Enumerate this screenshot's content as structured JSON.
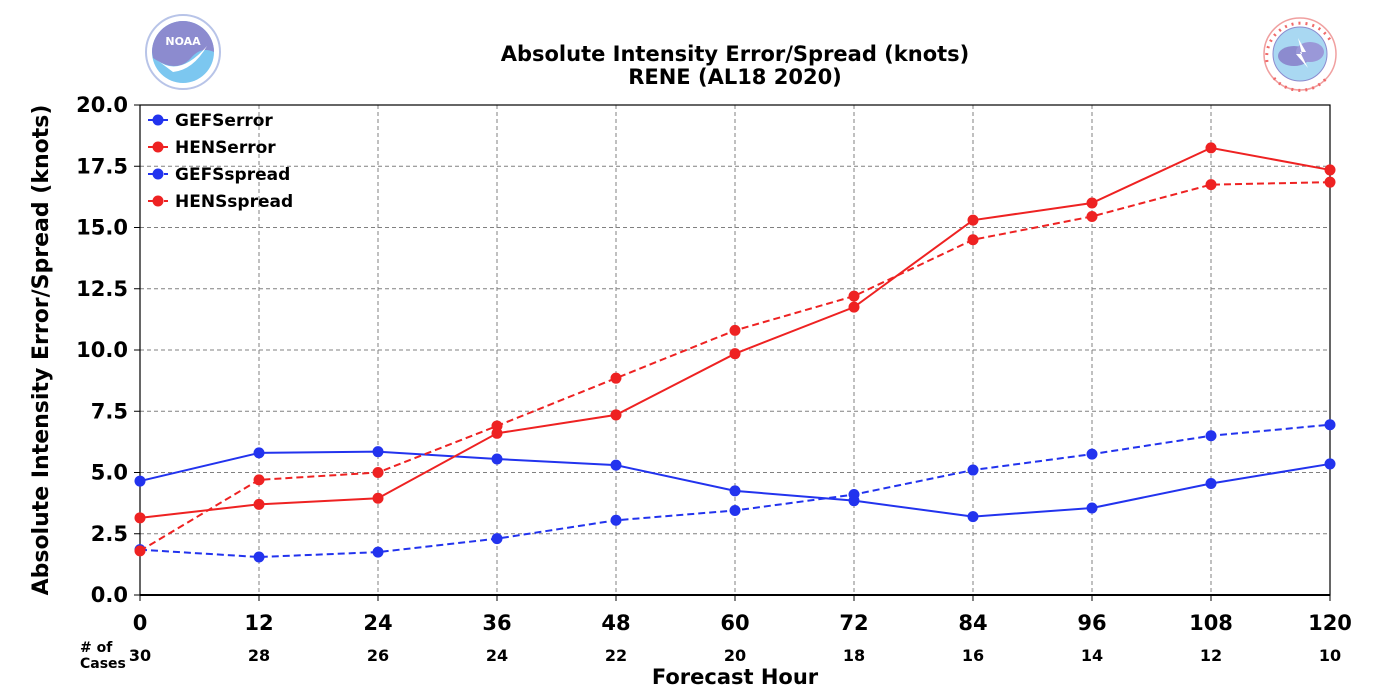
{
  "colors": {
    "blue": "#2233ee",
    "red": "#ee2222"
  },
  "logos": {
    "left": "noaa-logo",
    "right": "nws-logo"
  },
  "cases_header": [
    "# of",
    "Cases"
  ],
  "chart_data": {
    "type": "line",
    "title": "Absolute Intensity Error/Spread (knots)",
    "subtitle": "RENE (AL18 2020)",
    "xlabel": "Forecast Hour",
    "ylabel": "Absolute Intensity Error/Spread (knots)",
    "x": [
      0,
      12,
      24,
      36,
      48,
      60,
      72,
      84,
      96,
      108,
      120
    ],
    "xlim": [
      0,
      120
    ],
    "ylim": [
      0,
      20
    ],
    "yticks": [
      "0.0",
      "2.5",
      "5.0",
      "7.5",
      "10.0",
      "12.5",
      "15.0",
      "17.5",
      "20.0"
    ],
    "grid": true,
    "legend_position": "top-left",
    "cases": [
      30,
      28,
      26,
      24,
      22,
      20,
      18,
      16,
      14,
      12,
      10
    ],
    "series": [
      {
        "name": "GEFSerror",
        "color": "#2233ee",
        "dashed": false,
        "values": [
          4.65,
          5.8,
          5.85,
          5.55,
          5.3,
          4.25,
          3.85,
          3.2,
          3.55,
          4.55,
          5.35
        ]
      },
      {
        "name": "HENSerror",
        "color": "#ee2222",
        "dashed": false,
        "values": [
          3.15,
          3.7,
          3.95,
          6.6,
          7.35,
          9.85,
          11.75,
          15.3,
          16.0,
          18.25,
          17.35
        ]
      },
      {
        "name": "GEFSspread",
        "color": "#2233ee",
        "dashed": true,
        "values": [
          1.85,
          1.55,
          1.75,
          2.3,
          3.05,
          3.45,
          4.1,
          5.1,
          5.75,
          6.5,
          6.95
        ]
      },
      {
        "name": "HENSspread",
        "color": "#ee2222",
        "dashed": true,
        "values": [
          1.8,
          4.7,
          5.0,
          6.9,
          8.85,
          10.8,
          12.2,
          14.5,
          15.45,
          16.75,
          16.85
        ]
      }
    ]
  }
}
